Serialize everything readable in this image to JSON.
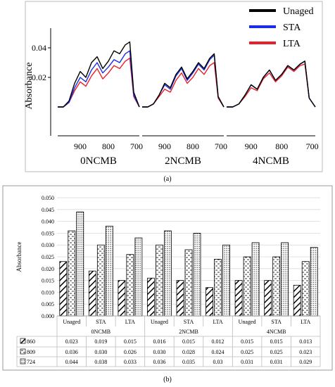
{
  "chart_data": [
    {
      "type": "line",
      "ylabel": "Absorbance",
      "yticks": [
        0.02,
        0.04
      ],
      "ytick_labels": [
        "0.02",
        "0.04"
      ],
      "xtick_labels": [
        "900",
        "800",
        "700"
      ],
      "legend": [
        "Unaged",
        "STA",
        "LTA"
      ],
      "legend_position": "top-right",
      "colors": {
        "Unaged": "#000000",
        "STA": "#1a2ee6",
        "LTA": "#e8202a"
      },
      "panels": [
        {
          "label": "0NCMB",
          "x": [
            980,
            960,
            940,
            920,
            900,
            880,
            860,
            840,
            820,
            800,
            780,
            760,
            740,
            724,
            710,
            690
          ],
          "series": [
            {
              "name": "Unaged",
              "values": [
                0,
                0,
                0.004,
                0.016,
                0.024,
                0.02,
                0.03,
                0.034,
                0.026,
                0.031,
                0.038,
                0.036,
                0.042,
                0.044,
                0.01,
                0
              ]
            },
            {
              "name": "STA",
              "values": [
                0,
                0,
                0.003,
                0.013,
                0.02,
                0.017,
                0.025,
                0.03,
                0.023,
                0.027,
                0.032,
                0.03,
                0.036,
                0.038,
                0.008,
                0
              ]
            },
            {
              "name": "LTA",
              "values": [
                0,
                0,
                0.003,
                0.011,
                0.017,
                0.014,
                0.021,
                0.026,
                0.019,
                0.023,
                0.028,
                0.026,
                0.031,
                0.033,
                0.007,
                0
              ]
            }
          ]
        },
        {
          "label": "2NCMB",
          "x": [
            980,
            960,
            940,
            920,
            900,
            880,
            860,
            840,
            820,
            800,
            780,
            760,
            740,
            724,
            710,
            690
          ],
          "series": [
            {
              "name": "Unaged",
              "values": [
                0,
                0,
                0.002,
                0.008,
                0.016,
                0.013,
                0.022,
                0.027,
                0.019,
                0.024,
                0.03,
                0.026,
                0.033,
                0.036,
                0.007,
                0
              ]
            },
            {
              "name": "STA",
              "values": [
                0,
                0,
                0.002,
                0.008,
                0.015,
                0.012,
                0.021,
                0.026,
                0.018,
                0.023,
                0.029,
                0.025,
                0.032,
                0.035,
                0.007,
                0
              ]
            },
            {
              "name": "LTA",
              "values": [
                0,
                0,
                0.002,
                0.007,
                0.012,
                0.01,
                0.018,
                0.023,
                0.016,
                0.02,
                0.026,
                0.022,
                0.028,
                0.03,
                0.006,
                0
              ]
            }
          ]
        },
        {
          "label": "4NCMB",
          "x": [
            980,
            960,
            940,
            920,
            900,
            880,
            860,
            840,
            820,
            800,
            780,
            760,
            740,
            724,
            710,
            690
          ],
          "series": [
            {
              "name": "Unaged",
              "values": [
                0,
                0,
                0.002,
                0.008,
                0.015,
                0.012,
                0.02,
                0.025,
                0.018,
                0.022,
                0.028,
                0.025,
                0.029,
                0.031,
                0.006,
                0
              ]
            },
            {
              "name": "STA",
              "values": [
                0,
                0,
                0.002,
                0.008,
                0.015,
                0.012,
                0.02,
                0.025,
                0.018,
                0.022,
                0.028,
                0.025,
                0.029,
                0.031,
                0.006,
                0
              ]
            },
            {
              "name": "LTA",
              "values": [
                0,
                0,
                0.002,
                0.007,
                0.013,
                0.011,
                0.019,
                0.023,
                0.017,
                0.021,
                0.027,
                0.024,
                0.028,
                0.029,
                0.006,
                0
              ]
            }
          ]
        }
      ]
    },
    {
      "type": "bar",
      "ylabel": "Absorbance",
      "ylim": [
        0,
        0.05
      ],
      "yticks": [
        "0.000",
        "0.005",
        "0.010",
        "0.015",
        "0.020",
        "0.025",
        "0.030",
        "0.035",
        "0.040",
        "0.045",
        "0.050"
      ],
      "groups": [
        "0NCMB",
        "2NCMB",
        "4NCMB"
      ],
      "categories": [
        "Unaged",
        "STA",
        "LTA",
        "Unaged",
        "STA",
        "LTA",
        "Unaged",
        "STA",
        "LTA"
      ],
      "series": [
        {
          "name": "860",
          "pattern": "diagonal",
          "values": [
            0.023,
            0.019,
            0.015,
            0.016,
            0.015,
            0.012,
            0.015,
            0.015,
            0.013
          ],
          "labels": [
            "0.023",
            "0.019",
            "0.015",
            "0.016",
            "0.015",
            "0.012",
            "0.015",
            "0.015",
            "0.013"
          ]
        },
        {
          "name": "809",
          "pattern": "dashed",
          "values": [
            0.036,
            0.03,
            0.026,
            0.03,
            0.028,
            0.024,
            0.025,
            0.025,
            0.023
          ],
          "labels": [
            "0.036",
            "0.030",
            "0.026",
            "0.030",
            "0.028",
            "0.024",
            "0.025",
            "0.025",
            "0.023"
          ]
        },
        {
          "name": "724",
          "pattern": "dotted",
          "values": [
            0.044,
            0.038,
            0.033,
            0.036,
            0.035,
            0.03,
            0.031,
            0.031,
            0.029
          ],
          "labels": [
            "0.044",
            "0.038",
            "0.033",
            "0.036",
            "0.035",
            "0.03",
            "0.031",
            "0.031",
            "0.029"
          ]
        }
      ],
      "grid": true,
      "legend": "table"
    }
  ],
  "captions": {
    "a": "(a)",
    "b": "(b)"
  }
}
